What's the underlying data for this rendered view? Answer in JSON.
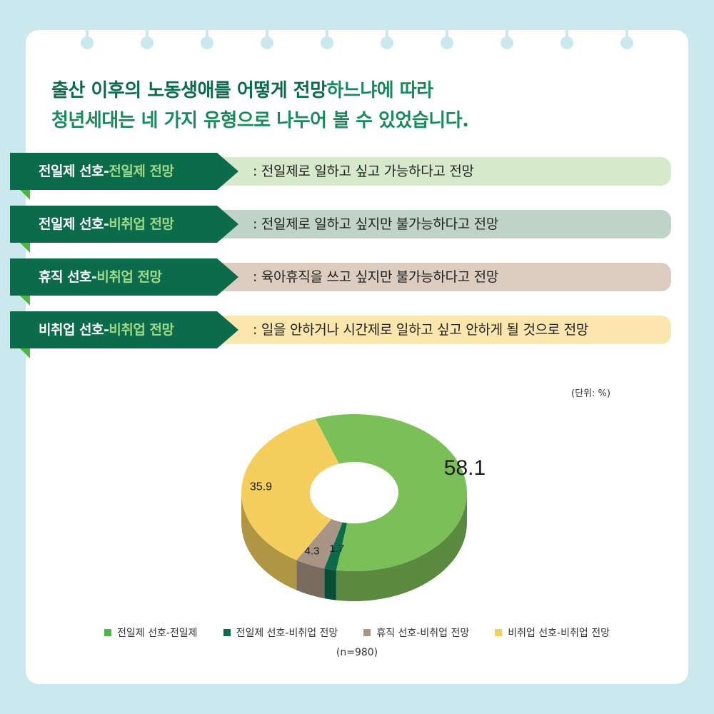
{
  "headline": {
    "line1_em": "출산 이후의 노동생애를 어떻게 전망",
    "line1_rest": "하느냐에 따라",
    "line2": "청년세대는 네 가지 유형으로 나누어 볼 수 있었습니다."
  },
  "types": [
    {
      "pref": "전일제 선호-",
      "outlook": "전일제 전망",
      "desc": ": 전일제로 일하고 싶고 가능하다고 전망",
      "bar_color": "#d6eacb"
    },
    {
      "pref": "전일제 선호-",
      "outlook": "비취업 전망",
      "desc": ": 전일제로 일하고 싶지만 불가능하다고 전망",
      "bar_color": "#bfd3c9"
    },
    {
      "pref": "휴직 선호-",
      "outlook": "비취업 전망",
      "desc": ": 육아휴직을 쓰고 싶지만 불가능하다고 전망",
      "bar_color": "#dccdc0"
    },
    {
      "pref": "비취업 선호-",
      "outlook": "비취업 전망",
      "desc": ": 일을 안하거나 시간제로 일하고 싶고 안하게 될 것으로 전망",
      "bar_color": "#fbe6ad"
    }
  ],
  "unit_label": "(단위: %)",
  "sample_note": "(n=980)",
  "chart_data": {
    "type": "pie",
    "title": "",
    "unit": "%",
    "categories": [
      "전일제 선호-전일제",
      "전일제 선호-비취업 전망",
      "휴직 선호-비취업 전망",
      "비취업 선호-비취업 전망"
    ],
    "values": [
      58.1,
      1.7,
      4.3,
      35.9
    ],
    "value_labels": [
      "58.1",
      "1.7",
      "4.3",
      "35.9"
    ],
    "colors": [
      "#7bbf58",
      "#0b6b4a",
      "#a89585",
      "#f5cf5e"
    ],
    "legend_position": "bottom",
    "style": "3d-donut"
  }
}
